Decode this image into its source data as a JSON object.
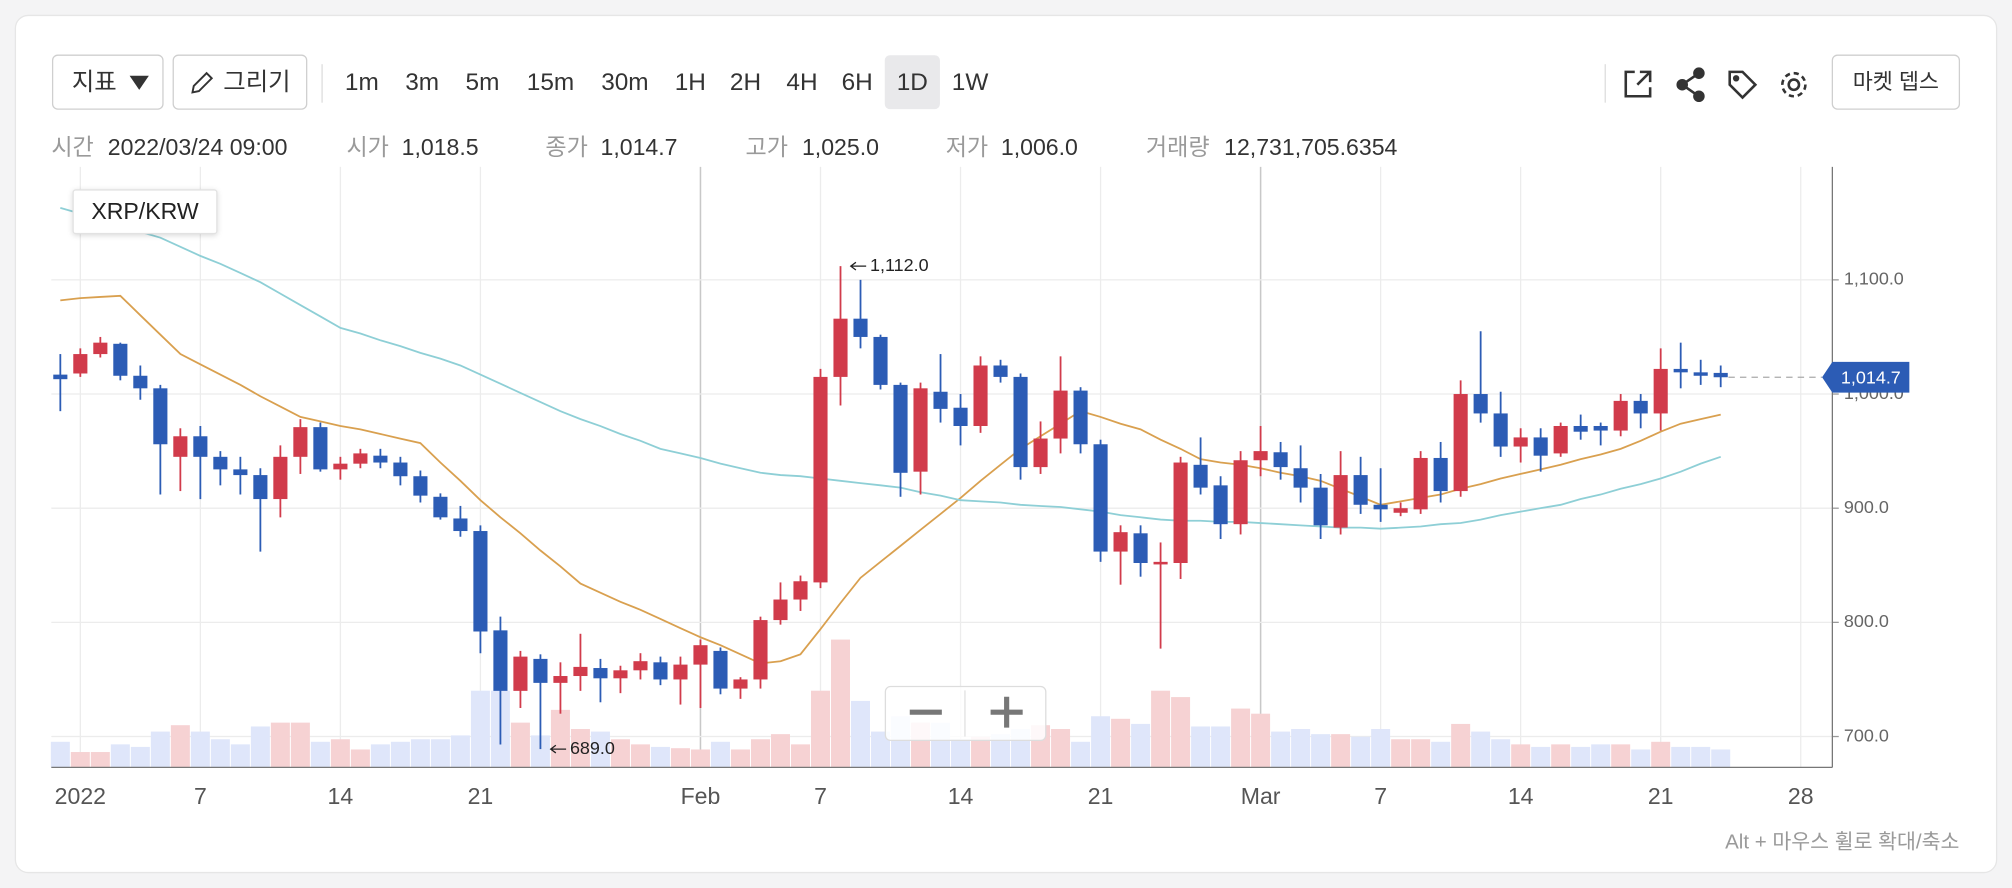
{
  "toolbar": {
    "indicator": "지표",
    "draw": "그리기",
    "intervals": [
      "1m",
      "3m",
      "5m",
      "15m",
      "30m",
      "1H",
      "2H",
      "4H",
      "6H",
      "1D",
      "1W"
    ],
    "active_interval": "1D",
    "market_depth": "마켓 뎁스"
  },
  "info": [
    {
      "label": "시간",
      "value": "2022/03/24 09:00"
    },
    {
      "label": "시가",
      "value": "1,018.5"
    },
    {
      "label": "종가",
      "value": "1,014.7"
    },
    {
      "label": "고가",
      "value": "1,025.0"
    },
    {
      "label": "저가",
      "value": "1,006.0"
    },
    {
      "label": "거래량",
      "value": "12,731,705.6354"
    }
  ],
  "chart_data": {
    "type": "candlestick",
    "title": "XRP/KRW",
    "categories": [
      null,
      "2022",
      null,
      null,
      null,
      null,
      null,
      "7",
      null,
      null,
      null,
      null,
      null,
      null,
      "14",
      null,
      null,
      null,
      null,
      null,
      null,
      "21",
      null,
      null,
      null,
      null,
      null,
      null,
      null,
      null,
      null,
      null,
      "Feb",
      null,
      null,
      null,
      null,
      null,
      "7",
      null,
      null,
      null,
      null,
      null,
      null,
      "14",
      null,
      null,
      null,
      null,
      null,
      null,
      "21",
      null,
      null,
      null,
      null,
      null,
      null,
      null,
      "Mar",
      null,
      null,
      null,
      null,
      null,
      "7",
      null,
      null,
      null,
      null,
      null,
      null,
      "14",
      null,
      null,
      null,
      null,
      null,
      null,
      "21",
      null,
      null,
      null,
      null,
      null,
      null,
      "28"
    ],
    "open": [
      1017,
      1018,
      1035,
      1044,
      1016,
      1005,
      945,
      963,
      945,
      934,
      929,
      908,
      945,
      971,
      934,
      939,
      946,
      940,
      928,
      910,
      891,
      880,
      793,
      740,
      768,
      747,
      753,
      760,
      751,
      758,
      765,
      750,
      763,
      775,
      742,
      750,
      802,
      820,
      835,
      1015,
      1066,
      1050,
      1008,
      932,
      1002,
      988,
      972,
      1025,
      1015,
      936,
      961,
      1003,
      956,
      862,
      878,
      851,
      852,
      938,
      920,
      886,
      942,
      949,
      935,
      918,
      883,
      929,
      903,
      896,
      899,
      944,
      915,
      1000,
      983,
      954,
      962,
      948,
      972,
      972,
      968,
      994,
      983,
      1022,
      1019,
      1018.5,
      null,
      null,
      null,
      null
    ],
    "high": [
      1035,
      1040,
      1050,
      1045,
      1025,
      1008,
      970,
      972,
      950,
      945,
      935,
      955,
      978,
      975,
      945,
      952,
      952,
      945,
      933,
      913,
      902,
      885,
      805,
      775,
      772,
      765,
      790,
      768,
      762,
      773,
      770,
      770,
      785,
      778,
      752,
      805,
      835,
      841,
      1022,
      1112,
      1100,
      1052,
      1010,
      1010,
      1035,
      1000,
      1033,
      1030,
      1018,
      976,
      1033,
      1006,
      960,
      885,
      885,
      870,
      945,
      962,
      928,
      950,
      972,
      958,
      955,
      930,
      950,
      945,
      935,
      905,
      950,
      958,
      1012,
      1055,
      1002,
      970,
      970,
      975,
      982,
      975,
      1000,
      1000,
      1040,
      1045,
      1030,
      1025,
      null,
      null,
      null,
      null
    ],
    "low": [
      985,
      1015,
      1032,
      1012,
      995,
      912,
      915,
      908,
      920,
      912,
      862,
      892,
      930,
      932,
      925,
      935,
      935,
      920,
      905,
      890,
      875,
      773,
      693,
      725,
      689,
      720,
      740,
      730,
      738,
      750,
      745,
      728,
      725,
      737,
      733,
      742,
      798,
      810,
      830,
      990,
      1040,
      1004,
      910,
      912,
      975,
      955,
      966,
      1010,
      925,
      930,
      948,
      948,
      853,
      833,
      840,
      777,
      838,
      912,
      873,
      877,
      928,
      925,
      905,
      873,
      877,
      895,
      888,
      893,
      895,
      905,
      910,
      975,
      945,
      940,
      932,
      945,
      960,
      955,
      963,
      970,
      968,
      1005,
      1008,
      1006,
      null,
      null,
      null,
      null
    ],
    "close": [
      1013,
      1035,
      1045,
      1016,
      1005,
      956,
      963,
      945,
      934,
      929,
      908,
      945,
      971,
      934,
      939,
      948,
      940,
      928,
      911,
      892,
      880,
      792,
      740,
      770,
      747,
      753,
      761,
      751,
      758,
      766,
      750,
      763,
      780,
      742,
      750,
      802,
      820,
      836,
      1015,
      1066,
      1050,
      1008,
      931,
      1005,
      987,
      972,
      1025,
      1015,
      936,
      961,
      1003,
      956,
      862,
      879,
      852,
      853,
      940,
      918,
      886,
      942,
      950,
      936,
      918,
      885,
      929,
      903,
      899,
      900,
      944,
      915,
      1000,
      983,
      954,
      962,
      946,
      972,
      967,
      968,
      994,
      983,
      1022,
      1019,
      1016,
      1014.7,
      null,
      null,
      null,
      null
    ],
    "volume": [
      20,
      12,
      12,
      18,
      16,
      28,
      33,
      28,
      22,
      18,
      32,
      35,
      35,
      20,
      22,
      14,
      18,
      20,
      22,
      22,
      25,
      60,
      60,
      35,
      25,
      45,
      30,
      28,
      22,
      18,
      16,
      15,
      14,
      20,
      14,
      22,
      26,
      18,
      60,
      100,
      52,
      28,
      40,
      35,
      35,
      22,
      24,
      26,
      30,
      33,
      30,
      20,
      40,
      38,
      34,
      60,
      55,
      32,
      32,
      46,
      42,
      28,
      30,
      26,
      26,
      24,
      30,
      22,
      22,
      20,
      34,
      28,
      22,
      18,
      16,
      18,
      16,
      18,
      18,
      14,
      20,
      16,
      16,
      14,
      null,
      null,
      null,
      null
    ],
    "volume_ylim": [
      0,
      470
    ],
    "moving_averages": [
      {
        "color": "#d9a04f",
        "values": [
          1082,
          1084,
          1085,
          1086,
          1069,
          1052,
          1035,
          1026,
          1017,
          1008,
          998,
          989,
          980,
          976,
          972,
          969,
          965,
          961,
          957,
          940,
          924,
          907,
          892,
          878,
          863,
          849,
          834,
          826,
          818,
          811,
          803,
          795,
          787,
          780,
          772,
          764,
          766,
          772,
          794,
          817,
          839,
          853,
          867,
          881,
          895,
          909,
          924,
          938,
          952,
          963,
          974,
          985,
          980,
          974,
          969,
          960,
          952,
          943,
          940,
          938,
          935,
          931,
          928,
          924,
          917,
          910,
          903,
          906,
          909,
          912,
          917,
          921,
          926,
          930,
          934,
          938,
          943,
          947,
          952,
          959,
          967,
          974,
          978,
          982,
          null,
          null,
          null,
          null
        ]
      },
      {
        "color": "#8ecfd6",
        "values": [
          1163,
          1158,
          1153,
          1147,
          1142,
          1137,
          1129,
          1121,
          1114,
          1106,
          1098,
          1088,
          1078,
          1068,
          1058,
          1053,
          1047,
          1042,
          1036,
          1031,
          1025,
          1017,
          1009,
          1001,
          993,
          985,
          978,
          972,
          965,
          959,
          952,
          948,
          944,
          939,
          935,
          931,
          929,
          928,
          926,
          924,
          922,
          920,
          918,
          914,
          911,
          907,
          906,
          905,
          903,
          902,
          901,
          899,
          897,
          894,
          892,
          890,
          889,
          889,
          888,
          888,
          887,
          886,
          885,
          884,
          883,
          883,
          882,
          883,
          884,
          886,
          887,
          890,
          894,
          897,
          900,
          903,
          908,
          912,
          917,
          921,
          926,
          932,
          939,
          945,
          null,
          null,
          null,
          null
        ]
      }
    ],
    "up_color": "#d13b4b",
    "down_color": "#2c5cb5",
    "up_volume_color": "#f6d2d3",
    "down_volume_color": "#dfe6fa",
    "ylim": [
      673,
      1199
    ],
    "yticks": [
      {
        "value": 700,
        "label": "700.0"
      },
      {
        "value": 800,
        "label": "800.0"
      },
      {
        "value": 900,
        "label": "900.0"
      },
      {
        "value": 1000,
        "label": "1,000.0"
      },
      {
        "value": 1100,
        "label": "1,100.0"
      }
    ],
    "grid": true,
    "max_label": {
      "value": 1112,
      "label": "1,112.0"
    },
    "min_label": {
      "value": 689,
      "label": "689.0"
    },
    "last_price": {
      "value": 1014.7,
      "label": "1,014.7"
    }
  },
  "footer": "Alt + 마우스 휠로 확대/축소"
}
